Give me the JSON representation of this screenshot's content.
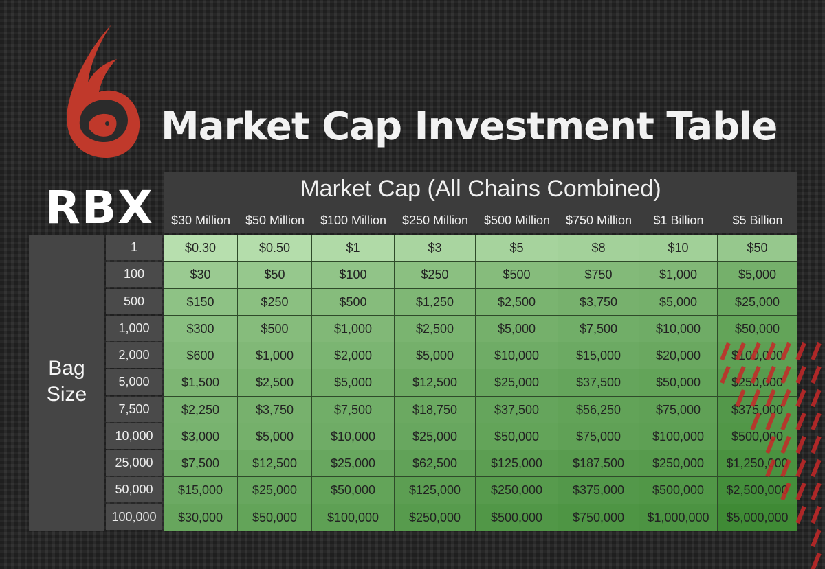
{
  "logo": {
    "text": "RBX"
  },
  "title": "Market Cap Investment Table",
  "header": {
    "title": "Market Cap (All Chains Combined)",
    "columns": [
      "$30 Million",
      "$50 Million",
      "$100 Million",
      "$250 Million",
      "$500 Million",
      "$750 Million",
      "$1 Billion",
      "$5 Billion"
    ]
  },
  "bag_label": "Bag Size",
  "rows": [
    {
      "label": "1",
      "values": [
        "$0.30",
        "$0.50",
        "$1",
        "$3",
        "$5",
        "$8",
        "$10",
        "$50"
      ]
    },
    {
      "label": "100",
      "values": [
        "$30",
        "$50",
        "$100",
        "$250",
        "$500",
        "$750",
        "$1,000",
        "$5,000"
      ]
    },
    {
      "label": "500",
      "values": [
        "$150",
        "$250",
        "$500",
        "$1,250",
        "$2,500",
        "$3,750",
        "$5,000",
        "$25,000"
      ]
    },
    {
      "label": "1,000",
      "values": [
        "$300",
        "$500",
        "$1,000",
        "$2,500",
        "$5,000",
        "$7,500",
        "$10,000",
        "$50,000"
      ]
    },
    {
      "label": "2,000",
      "values": [
        "$600",
        "$1,000",
        "$2,000",
        "$5,000",
        "$10,000",
        "$15,000",
        "$20,000",
        "$100,000"
      ]
    },
    {
      "label": "5,000",
      "values": [
        "$1,500",
        "$2,500",
        "$5,000",
        "$12,500",
        "$25,000",
        "$37,500",
        "$50,000",
        "$250,000"
      ]
    },
    {
      "label": "7,500",
      "values": [
        "$2,250",
        "$3,750",
        "$7,500",
        "$18,750",
        "$37,500",
        "$56,250",
        "$75,000",
        "$375,000"
      ]
    },
    {
      "label": "10,000",
      "values": [
        "$3,000",
        "$5,000",
        "$10,000",
        "$25,000",
        "$50,000",
        "$75,000",
        "$100,000",
        "$500,000"
      ]
    },
    {
      "label": "25,000",
      "values": [
        "$7,500",
        "$12,500",
        "$25,000",
        "$62,500",
        "$125,000",
        "$187,500",
        "$250,000",
        "$1,250,000"
      ]
    },
    {
      "label": "50,000",
      "values": [
        "$15,000",
        "$25,000",
        "$50,000",
        "$125,000",
        "$250,000",
        "$375,000",
        "$500,000",
        "$2,500,000"
      ]
    },
    {
      "label": "100,000",
      "values": [
        "$30,000",
        "$50,000",
        "$100,000",
        "$250,000",
        "$500,000",
        "$750,000",
        "$1,000,000",
        "$5,000,000"
      ]
    }
  ],
  "colors": {
    "logo_red": "#c0392b",
    "header_bg": "#3c3c3c",
    "cell_light": "#b7dfae",
    "cell_dark": "#3f8a35",
    "decor_red": "#c62828"
  }
}
